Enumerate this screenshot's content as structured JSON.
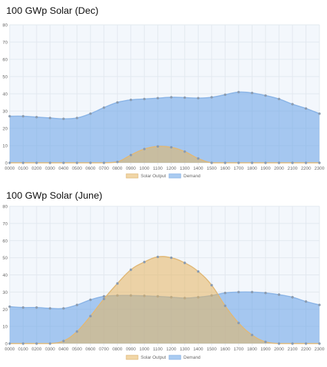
{
  "colors": {
    "solar_fill": "rgba(230,180,95,0.55)",
    "solar_line": "#e0b877",
    "demand_fill": "rgba(100,160,230,0.55)",
    "demand_line": "#8ab4e6",
    "point": "#8a9bb0",
    "plot_bg": "#f3f7fc",
    "grid": "#e2e8ef",
    "tick_text": "#666666"
  },
  "chart_data": [
    {
      "type": "area",
      "title": "100 GWp Solar (Dec)",
      "xlabel": "",
      "ylabel": "",
      "ylim": [
        0,
        80
      ],
      "yticks": [
        0,
        10,
        20,
        30,
        40,
        50,
        60,
        70,
        80
      ],
      "grid": true,
      "legend_position": "bottom",
      "categories": [
        "0000",
        "0100",
        "0200",
        "0300",
        "0400",
        "0500",
        "0600",
        "0700",
        "0800",
        "0900",
        "1000",
        "1100",
        "1200",
        "1300",
        "1400",
        "1500",
        "1600",
        "1700",
        "1800",
        "1900",
        "2000",
        "2100",
        "2200",
        "2300"
      ],
      "series": [
        {
          "name": "Solar Output",
          "values": [
            0,
            0,
            0,
            0,
            0,
            0,
            0,
            0,
            0.5,
            4.5,
            8,
            9.5,
            9,
            6.5,
            2.5,
            0,
            0,
            0,
            0,
            0,
            0,
            0,
            0,
            0
          ]
        },
        {
          "name": "Demand",
          "values": [
            27,
            27,
            26.5,
            26,
            25.5,
            26,
            28.5,
            32,
            35,
            36.5,
            37,
            37.5,
            38,
            37.8,
            37.5,
            38,
            39.5,
            41,
            40.5,
            39,
            37,
            34,
            31.5,
            28.5
          ]
        }
      ]
    },
    {
      "type": "area",
      "title": "100 GWp Solar (June)",
      "xlabel": "",
      "ylabel": "",
      "ylim": [
        0,
        80
      ],
      "yticks": [
        0,
        10,
        20,
        30,
        40,
        50,
        60,
        70,
        80
      ],
      "grid": true,
      "legend_position": "bottom",
      "categories": [
        "0000",
        "0100",
        "0200",
        "0300",
        "0400",
        "0500",
        "0600",
        "0700",
        "0800",
        "0900",
        "1000",
        "1100",
        "1200",
        "1300",
        "1400",
        "1500",
        "1600",
        "1700",
        "1800",
        "1900",
        "2000",
        "2100",
        "2200",
        "2300"
      ],
      "series": [
        {
          "name": "Solar Output",
          "values": [
            0,
            0,
            0,
            0,
            1.5,
            7,
            16,
            26,
            35,
            43,
            47.5,
            50.5,
            50,
            47,
            42,
            34,
            22,
            12,
            5,
            1,
            0,
            0,
            0,
            0
          ]
        },
        {
          "name": "Demand",
          "values": [
            21.5,
            21,
            21,
            20.5,
            20.5,
            22.5,
            25.5,
            27.5,
            28,
            28,
            27.8,
            27.5,
            27,
            26.5,
            27,
            28,
            29.5,
            30,
            30,
            29.5,
            28.5,
            27,
            24.5,
            22.5
          ]
        }
      ]
    }
  ]
}
